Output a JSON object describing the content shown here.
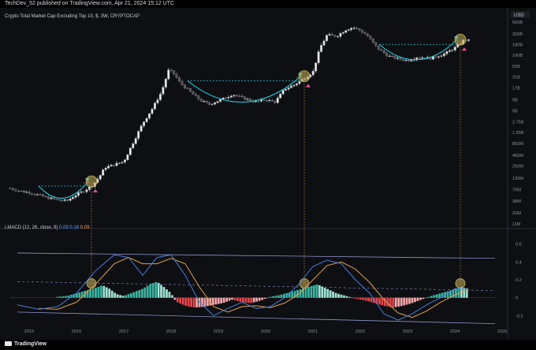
{
  "header": {
    "publisher_line": "TechDev_52 published on TradingView.com, Apr 21, 2024 15:12 UTC"
  },
  "symbol": {
    "label": "Crypto Total Market Cap Excluding Top 10, $, 3W, CRYPTOCAP"
  },
  "indicator": {
    "label": "LMACD (12, 26, close, 9)",
    "value1": "0.09",
    "value2": "0.18",
    "value3": "0.09"
  },
  "footer": {
    "brand": "TradingView"
  },
  "colors": {
    "background": "#0e0f13",
    "up": "#e8e8e8",
    "down": "#4a4d55",
    "cyan": "#25c7d6",
    "macd": "#4a7bd6",
    "signal": "#e0a050",
    "hist_pos": "#3bb3a0",
    "hist_pos_light": "#9fe3d6",
    "hist_neg": "#e0474c",
    "hist_neg_light": "#f2a7aa",
    "marker_pink": "#ff4d9a",
    "circle": "#c9b25a"
  },
  "chart_data": [
    {
      "type": "line",
      "title": "Crypto Total Market Cap Excluding Top 10, $, 3W, CRYPTOCAP",
      "y_scale": "log",
      "y_unit": "USD",
      "y_ticks": [
        "600B",
        "320B",
        "180B",
        "100B",
        "55B",
        "31B",
        "17B",
        "9B",
        "5B",
        "2.75B",
        "1.55B",
        "850M",
        "450M",
        "250M",
        "130M",
        "70M",
        "38M",
        "20M",
        "11M"
      ],
      "x_ticks": [
        "2015",
        "2016",
        "2017",
        "2018",
        "2019",
        "2020",
        "2021",
        "2022",
        "2023",
        "2024",
        "2025"
      ],
      "series": [
        {
          "values": [
            [
              2014.6,
              0.075
            ],
            [
              2014.8,
              0.065
            ],
            [
              2015.0,
              0.06
            ],
            [
              2015.2,
              0.052
            ],
            [
              2015.4,
              0.045
            ],
            [
              2015.6,
              0.04
            ],
            [
              2015.8,
              0.038
            ],
            [
              2015.95,
              0.05
            ],
            [
              2016.15,
              0.065
            ],
            [
              2016.35,
              0.09
            ],
            [
              2016.5,
              0.15
            ],
            [
              2016.6,
              0.23
            ],
            [
              2016.8,
              0.27
            ],
            [
              2017.0,
              0.32
            ],
            [
              2017.2,
              0.9
            ],
            [
              2017.4,
              2.5
            ],
            [
              2017.6,
              5.5
            ],
            [
              2017.8,
              14
            ],
            [
              2017.95,
              45
            ],
            [
              2018.05,
              38
            ],
            [
              2018.2,
              22
            ],
            [
              2018.4,
              14
            ],
            [
              2018.6,
              9
            ],
            [
              2018.8,
              7
            ],
            [
              2019.0,
              8.5
            ],
            [
              2019.3,
              12
            ],
            [
              2019.5,
              10
            ],
            [
              2019.8,
              8
            ],
            [
              2020.0,
              9
            ],
            [
              2020.2,
              8
            ],
            [
              2020.4,
              16
            ],
            [
              2020.6,
              20
            ],
            [
              2020.8,
              28
            ],
            [
              2021.0,
              40
            ],
            [
              2021.15,
              150
            ],
            [
              2021.3,
              300
            ],
            [
              2021.5,
              280
            ],
            [
              2021.7,
              400
            ],
            [
              2021.85,
              450
            ],
            [
              2022.0,
              380
            ],
            [
              2022.15,
              290
            ],
            [
              2022.35,
              150
            ],
            [
              2022.6,
              95
            ],
            [
              2022.85,
              80
            ],
            [
              2023.0,
              75
            ],
            [
              2023.2,
              90
            ],
            [
              2023.5,
              85
            ],
            [
              2023.8,
              110
            ],
            [
              2024.0,
              150
            ],
            [
              2024.2,
              230
            ],
            [
              2024.3,
              220
            ]
          ]
        }
      ],
      "annotations": [
        {
          "type": "cup",
          "x_range": [
            2015.2,
            2016.25
          ],
          "y_level": 0.085,
          "y_bottom": 0.04
        },
        {
          "type": "cup",
          "x_range": [
            2018.35,
            2020.75
          ],
          "y_level": 25,
          "y_bottom": 7
        },
        {
          "type": "cup",
          "x_range": [
            2022.4,
            2024.05
          ],
          "y_level": 180,
          "y_bottom": 70
        }
      ]
    },
    {
      "type": "bar",
      "title": "LMACD (12, 26, close, 9)",
      "y_ticks": [
        "0.6",
        "0.4",
        "0.2",
        "0",
        "-0.2"
      ],
      "ylim": [
        -0.32,
        0.72
      ],
      "series": [
        {
          "name": "histogram",
          "values": [
            [
              2015.6,
              0.01
            ],
            [
              2015.8,
              0.02
            ],
            [
              2016.0,
              0.05
            ],
            [
              2016.2,
              0.08
            ],
            [
              2016.4,
              0.11
            ],
            [
              2016.55,
              0.14
            ],
            [
              2016.7,
              0.1
            ],
            [
              2016.85,
              0.04
            ],
            [
              2017.0,
              0.02
            ],
            [
              2017.2,
              0.06
            ],
            [
              2017.4,
              0.1
            ],
            [
              2017.55,
              0.15
            ],
            [
              2017.7,
              0.18
            ],
            [
              2017.85,
              0.12
            ],
            [
              2018.0,
              0.05
            ],
            [
              2018.1,
              -0.04
            ],
            [
              2018.3,
              -0.09
            ],
            [
              2018.5,
              -0.11
            ],
            [
              2018.7,
              -0.1
            ],
            [
              2018.9,
              -0.08
            ],
            [
              2019.1,
              -0.06
            ],
            [
              2019.3,
              -0.02
            ],
            [
              2019.5,
              -0.05
            ],
            [
              2019.7,
              -0.06
            ],
            [
              2019.9,
              -0.03
            ],
            [
              2020.1,
              0.01
            ],
            [
              2020.3,
              0.03
            ],
            [
              2020.5,
              0.06
            ],
            [
              2020.7,
              0.09
            ],
            [
              2020.9,
              0.12
            ],
            [
              2021.1,
              0.15
            ],
            [
              2021.3,
              0.1
            ],
            [
              2021.5,
              0.05
            ],
            [
              2021.7,
              0.02
            ],
            [
              2021.9,
              -0.01
            ],
            [
              2022.1,
              -0.03
            ],
            [
              2022.3,
              -0.06
            ],
            [
              2022.5,
              -0.09
            ],
            [
              2022.7,
              -0.11
            ],
            [
              2022.9,
              -0.09
            ],
            [
              2023.1,
              -0.06
            ],
            [
              2023.3,
              -0.02
            ],
            [
              2023.5,
              0.02
            ],
            [
              2023.7,
              0.05
            ],
            [
              2023.9,
              0.08
            ],
            [
              2024.1,
              0.12
            ],
            [
              2024.3,
              0.1
            ]
          ]
        },
        {
          "name": "MACD",
          "values": [
            [
              2014.75,
              -0.08
            ],
            [
              2015.2,
              -0.13
            ],
            [
              2015.6,
              -0.1
            ],
            [
              2016.0,
              0.05
            ],
            [
              2016.4,
              0.3
            ],
            [
              2016.8,
              0.48
            ],
            [
              2017.1,
              0.45
            ],
            [
              2017.4,
              0.25
            ],
            [
              2017.7,
              0.45
            ],
            [
              2018.0,
              0.48
            ],
            [
              2018.3,
              0.25
            ],
            [
              2018.6,
              -0.05
            ],
            [
              2018.9,
              -0.2
            ],
            [
              2019.2,
              -0.12
            ],
            [
              2019.5,
              -0.05
            ],
            [
              2019.8,
              -0.12
            ],
            [
              2020.1,
              -0.1
            ],
            [
              2020.4,
              0.0
            ],
            [
              2020.7,
              0.15
            ],
            [
              2021.0,
              0.35
            ],
            [
              2021.3,
              0.42
            ],
            [
              2021.6,
              0.38
            ],
            [
              2021.9,
              0.2
            ],
            [
              2022.2,
              0.05
            ],
            [
              2022.5,
              -0.18
            ],
            [
              2022.8,
              -0.25
            ],
            [
              2023.1,
              -0.18
            ],
            [
              2023.4,
              -0.08
            ],
            [
              2023.7,
              0.0
            ],
            [
              2024.0,
              0.1
            ],
            [
              2024.3,
              0.09
            ]
          ]
        },
        {
          "name": "Signal",
          "values": [
            [
              2015.2,
              -0.12
            ],
            [
              2015.6,
              -0.13
            ],
            [
              2016.0,
              -0.05
            ],
            [
              2016.4,
              0.15
            ],
            [
              2016.8,
              0.38
            ],
            [
              2017.1,
              0.45
            ],
            [
              2017.4,
              0.38
            ],
            [
              2017.7,
              0.38
            ],
            [
              2018.0,
              0.44
            ],
            [
              2018.3,
              0.38
            ],
            [
              2018.6,
              0.12
            ],
            [
              2018.9,
              -0.1
            ],
            [
              2019.2,
              -0.16
            ],
            [
              2019.5,
              -0.1
            ],
            [
              2019.8,
              -0.09
            ],
            [
              2020.1,
              -0.11
            ],
            [
              2020.4,
              -0.06
            ],
            [
              2020.7,
              0.04
            ],
            [
              2021.0,
              0.2
            ],
            [
              2021.3,
              0.36
            ],
            [
              2021.6,
              0.4
            ],
            [
              2021.9,
              0.32
            ],
            [
              2022.2,
              0.17
            ],
            [
              2022.5,
              -0.02
            ],
            [
              2022.8,
              -0.17
            ],
            [
              2023.1,
              -0.22
            ],
            [
              2023.4,
              -0.15
            ],
            [
              2023.7,
              -0.05
            ],
            [
              2024.0,
              0.03
            ],
            [
              2024.3,
              0.09
            ]
          ]
        }
      ]
    }
  ]
}
